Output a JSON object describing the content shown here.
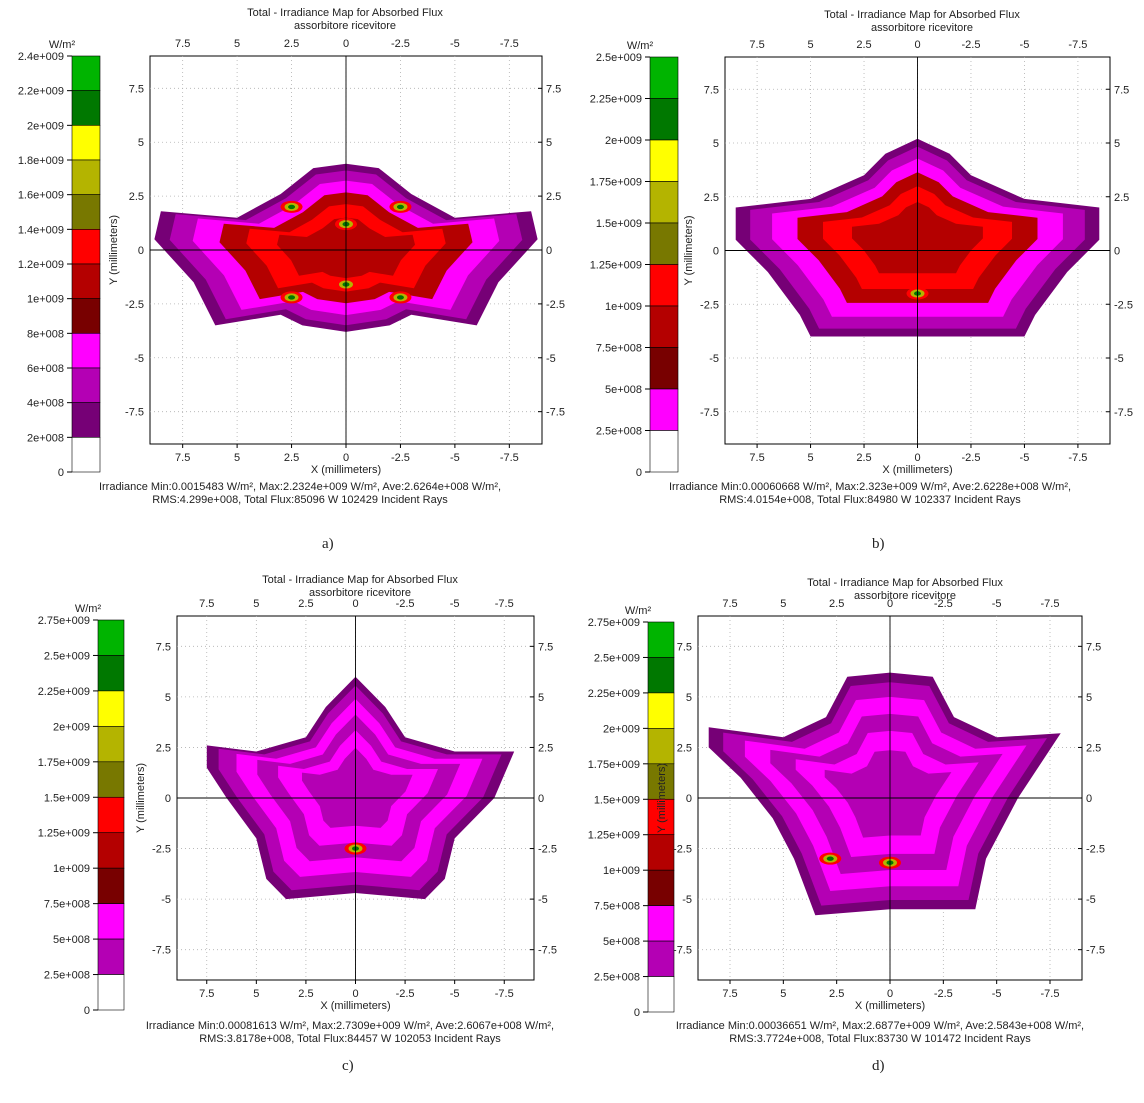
{
  "colors": {
    "scale": [
      "#ffffff",
      "#760076",
      "#b400b4",
      "#ff00ff",
      "#780000",
      "#b40000",
      "#ff0000",
      "#787800",
      "#b4b400",
      "#ffff00",
      "#007800",
      "#00b400"
    ],
    "axis": "#000000",
    "grid": "#b0b0b0"
  },
  "panels": [
    {
      "label": "a)",
      "title": "Total - Irradiance Map for Absorbed Flux",
      "subtitle": "assorbitore ricevitore",
      "xlabel": "X (millimeters)",
      "ylabel": "Y (millimeters)",
      "unit": "W/m²",
      "stats_line1": "Irradiance Min:0.0015483 W/m², Max:2.2324e+009 W/m², Ave:2.6264e+008 W/m²,",
      "stats_line2": "RMS:4.299e+008, Total Flux:85096 W 102429 Incident Rays",
      "scale_labels": [
        "2.4e+009",
        "2.2e+009",
        "2e+009",
        "1.8e+009",
        "1.6e+009",
        "1.4e+009",
        "1.2e+009",
        "1e+009",
        "8e+008",
        "6e+008",
        "4e+008",
        "2e+008",
        "0"
      ]
    },
    {
      "label": "b)",
      "title": "Total - Irradiance Map for Absorbed Flux",
      "subtitle": "assorbitore ricevitore",
      "xlabel": "X (millimeters)",
      "ylabel": "Y (millimeters)",
      "unit": "W/m²",
      "stats_line1": "Irradiance Min:0.00060668 W/m², Max:2.323e+009 W/m², Ave:2.6228e+008 W/m²,",
      "stats_line2": "RMS:4.0154e+008, Total Flux:84980 W 102337 Incident Rays",
      "scale_labels": [
        "2.5e+009",
        "2.25e+009",
        "2e+009",
        "1.75e+009",
        "1.5e+009",
        "1.25e+009",
        "1e+009",
        "7.5e+008",
        "5e+008",
        "2.5e+008",
        "0"
      ]
    },
    {
      "label": "c)",
      "title": "Total - Irradiance Map for Absorbed Flux",
      "subtitle": "assorbitore ricevitore",
      "xlabel": "X (millimeters)",
      "ylabel": "Y (millimeters)",
      "unit": "W/m²",
      "stats_line1": "Irradiance Min:0.00081613 W/m², Max:2.7309e+009 W/m², Ave:2.6067e+008 W/m²,",
      "stats_line2": "RMS:3.8178e+008, Total Flux:84457 W 102053 Incident Rays",
      "scale_labels": [
        "2.75e+009",
        "2.5e+009",
        "2.25e+009",
        "2e+009",
        "1.75e+009",
        "1.5e+009",
        "1.25e+009",
        "1e+009",
        "7.5e+008",
        "5e+008",
        "2.5e+008",
        "0"
      ]
    },
    {
      "label": "d)",
      "title": "Total - Irradiance Map for Absorbed Flux",
      "subtitle": "assorbitore ricevitore",
      "xlabel": "X (millimeters)",
      "ylabel": "Y (millimeters)",
      "unit": "W/m²",
      "stats_line1": "Irradiance Min:0.00036651 W/m², Max:2.6877e+009 W/m², Ave:2.5843e+008 W/m²,",
      "stats_line2": "RMS:3.7724e+008, Total Flux:83730 W 101472 Incident Rays",
      "scale_labels": [
        "2.75e+009",
        "2.5e+009",
        "2.25e+009",
        "2e+009",
        "1.75e+009",
        "1.5e+009",
        "1.25e+009",
        "1e+009",
        "7.5e+008",
        "5e+008",
        "2.5e+008",
        "0"
      ]
    }
  ],
  "chart_data": [
    {
      "type": "heatmap",
      "title": "Total - Irradiance Map for Absorbed Flux",
      "subtitle": "assorbitore ricevitore",
      "xlabel": "X (millimeters)",
      "ylabel": "Y (millimeters)",
      "xlim": [
        9,
        -9
      ],
      "ylim": [
        -9,
        9
      ],
      "x_ticks": [
        7.5,
        5,
        2.5,
        0,
        -2.5,
        -5,
        -7.5
      ],
      "y_ticks": [
        7.5,
        5,
        2.5,
        0,
        -2.5,
        -5,
        -7.5
      ],
      "grid": true,
      "colorbar_unit": "W/m²",
      "colorbar_ticks": [
        2400000000.0,
        2200000000.0,
        2000000000.0,
        1800000000.0,
        1600000000.0,
        1400000000.0,
        1200000000.0,
        1000000000.0,
        800000000.0,
        600000000.0,
        400000000.0,
        200000000.0,
        0
      ],
      "shape": [
        [
          8.5,
          1.8
        ],
        [
          5,
          1.5
        ],
        [
          3,
          2.6
        ],
        [
          1.5,
          3.8
        ],
        [
          0,
          4
        ],
        [
          -1.5,
          3.8
        ],
        [
          -3,
          2.6
        ],
        [
          -5,
          1.5
        ],
        [
          -8.5,
          1.8
        ],
        [
          -8.8,
          0.5
        ],
        [
          -7,
          -1.5
        ],
        [
          -6,
          -3.5
        ],
        [
          -3,
          -3
        ],
        [
          -2,
          -3.5
        ],
        [
          0,
          -3.8
        ],
        [
          2,
          -3.5
        ],
        [
          3,
          -3
        ],
        [
          6,
          -3.5
        ],
        [
          7,
          -1.5
        ],
        [
          8.8,
          0.5
        ]
      ],
      "hotspots": [
        {
          "x": 2.5,
          "y": 2
        },
        {
          "x": -2.5,
          "y": 2
        },
        {
          "x": 0,
          "y": 1.2
        },
        {
          "x": 0,
          "y": -1.6
        },
        {
          "x": -2.5,
          "y": -2.2
        },
        {
          "x": 2.5,
          "y": -2.2
        }
      ],
      "stats": {
        "min": 0.0015483,
        "max": 2232400000.0,
        "ave": 262640000.0,
        "rms": 429900000.0,
        "total_flux_W": 85096,
        "incident_rays": 102429
      }
    },
    {
      "type": "heatmap",
      "title": "Total - Irradiance Map for Absorbed Flux",
      "subtitle": "assorbitore ricevitore",
      "xlabel": "X (millimeters)",
      "ylabel": "Y (millimeters)",
      "xlim": [
        9,
        -9
      ],
      "ylim": [
        -9,
        9
      ],
      "x_ticks": [
        7.5,
        5,
        2.5,
        0,
        -2.5,
        -5,
        -7.5
      ],
      "y_ticks": [
        7.5,
        5,
        2.5,
        0,
        -2.5,
        -5,
        -7.5
      ],
      "grid": true,
      "colorbar_unit": "W/m²",
      "colorbar_ticks": [
        2500000000.0,
        2250000000.0,
        2000000000.0,
        1750000000.0,
        1500000000.0,
        1250000000.0,
        1000000000.0,
        750000000.0,
        500000000.0,
        250000000.0,
        0
      ],
      "shape": [
        [
          8.5,
          2
        ],
        [
          5,
          2.4
        ],
        [
          2.5,
          3.5
        ],
        [
          1.5,
          4.5
        ],
        [
          0,
          5.2
        ],
        [
          -1.5,
          4.5
        ],
        [
          -2.5,
          3.5
        ],
        [
          -5,
          2.4
        ],
        [
          -8.5,
          2
        ],
        [
          -8.5,
          0.5
        ],
        [
          -7,
          -1
        ],
        [
          -5.5,
          -3
        ],
        [
          -5,
          -4
        ],
        [
          -3,
          -4
        ],
        [
          0,
          -4
        ],
        [
          3,
          -4
        ],
        [
          5,
          -4
        ],
        [
          5.5,
          -3
        ],
        [
          7,
          -1
        ],
        [
          8.5,
          0.5
        ]
      ],
      "hotspots": [
        {
          "x": 0,
          "y": -2
        }
      ],
      "stats": {
        "min": 0.00060668,
        "max": 2323000000.0,
        "ave": 262280000.0,
        "rms": 401540000.0,
        "total_flux_W": 84980,
        "incident_rays": 102337
      }
    },
    {
      "type": "heatmap",
      "title": "Total - Irradiance Map for Absorbed Flux",
      "subtitle": "assorbitore ricevitore",
      "xlabel": "X (millimeters)",
      "ylabel": "Y (millimeters)",
      "xlim": [
        9,
        -9
      ],
      "ylim": [
        -9,
        9
      ],
      "x_ticks": [
        7.5,
        5,
        2.5,
        0,
        -2.5,
        -5,
        -7.5
      ],
      "y_ticks": [
        7.5,
        5,
        2.5,
        0,
        -2.5,
        -5,
        -7.5
      ],
      "grid": true,
      "colorbar_unit": "W/m²",
      "colorbar_ticks": [
        2750000000.0,
        2500000000.0,
        2250000000.0,
        2000000000.0,
        1750000000.0,
        1500000000.0,
        1250000000.0,
        1000000000.0,
        750000000.0,
        500000000.0,
        250000000.0,
        0
      ],
      "shape": [
        [
          7.5,
          2.6
        ],
        [
          5,
          2.3
        ],
        [
          2.5,
          3
        ],
        [
          1.5,
          4.5
        ],
        [
          0,
          6
        ],
        [
          -1.5,
          4.5
        ],
        [
          -2.5,
          3
        ],
        [
          -5,
          2.3
        ],
        [
          -8,
          2.3
        ],
        [
          -7,
          0
        ],
        [
          -5,
          -2
        ],
        [
          -4.5,
          -4
        ],
        [
          -3.5,
          -5
        ],
        [
          0,
          -4.7
        ],
        [
          3.5,
          -5
        ],
        [
          4.5,
          -4
        ],
        [
          5,
          -2
        ],
        [
          6.5,
          0
        ],
        [
          7.5,
          1.5
        ]
      ],
      "hotspots": [
        {
          "x": 0,
          "y": -2.5
        }
      ],
      "stats": {
        "min": 0.00081613,
        "max": 2730900000.0,
        "ave": 260670000.0,
        "rms": 381780000.0,
        "total_flux_W": 84457,
        "incident_rays": 102053
      }
    },
    {
      "type": "heatmap",
      "title": "Total - Irradiance Map for Absorbed Flux",
      "subtitle": "assorbitore ricevitore",
      "xlabel": "X (millimeters)",
      "ylabel": "Y (millimeters)",
      "xlim": [
        9,
        -9
      ],
      "ylim": [
        -9,
        9
      ],
      "x_ticks": [
        7.5,
        5,
        2.5,
        0,
        -2.5,
        -5,
        -7.5
      ],
      "y_ticks": [
        7.5,
        5,
        2.5,
        0,
        -2.5,
        -5,
        -7.5
      ],
      "grid": true,
      "colorbar_unit": "W/m²",
      "colorbar_ticks": [
        2750000000.0,
        2500000000.0,
        2250000000.0,
        2000000000.0,
        1750000000.0,
        1500000000.0,
        1250000000.0,
        1000000000.0,
        750000000.0,
        500000000.0,
        250000000.0,
        0
      ],
      "shape": [
        [
          8.5,
          3.5
        ],
        [
          5,
          3
        ],
        [
          3,
          4
        ],
        [
          2,
          6
        ],
        [
          0,
          6.2
        ],
        [
          -2,
          6
        ],
        [
          -3,
          4
        ],
        [
          -5,
          3
        ],
        [
          -8,
          3.2
        ],
        [
          -6,
          0
        ],
        [
          -4.5,
          -3
        ],
        [
          -4,
          -5.5
        ],
        [
          0,
          -5.5
        ],
        [
          3.5,
          -5.8
        ],
        [
          4.5,
          -3
        ],
        [
          5.5,
          -1
        ],
        [
          7,
          1
        ],
        [
          8.5,
          2.5
        ]
      ],
      "hotspots": [
        {
          "x": 0,
          "y": -3.2
        },
        {
          "x": 2.8,
          "y": -3
        }
      ],
      "stats": {
        "min": 0.00036651,
        "max": 2687700000.0,
        "ave": 258430000.0,
        "rms": 377240000.0,
        "total_flux_W": 83730,
        "incident_rays": 101472
      }
    }
  ]
}
